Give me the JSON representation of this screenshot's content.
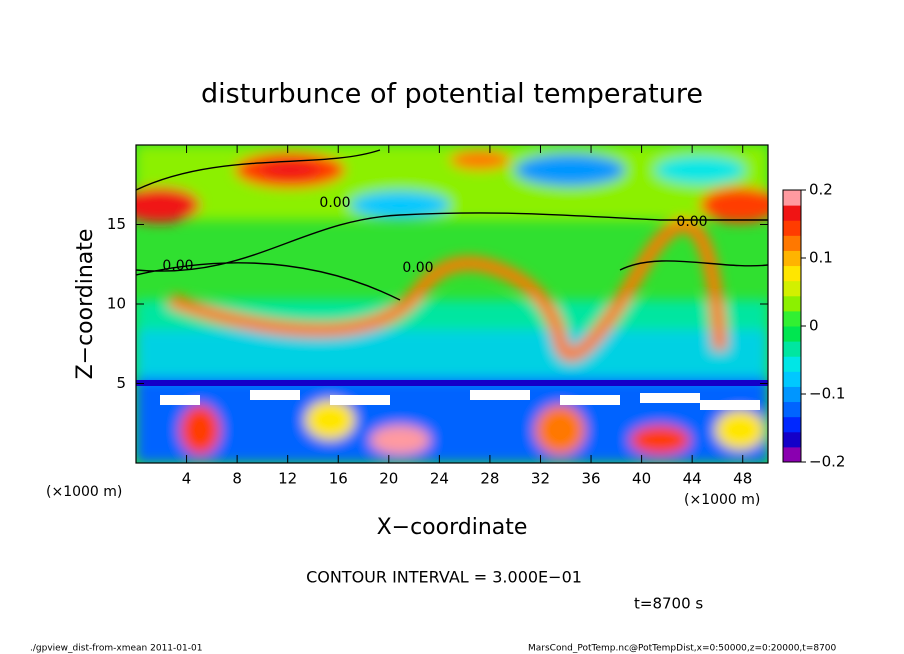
{
  "chart_data": {
    "type": "heatmap",
    "title": "disturbunce of potential temperature",
    "xlabel": "X−coordinate",
    "ylabel": "Z−coordinate",
    "x_unit_left": "(×1000 m)",
    "x_unit_right": "(×1000 m)",
    "xlim": [
      0,
      50
    ],
    "xticks": [
      4,
      8,
      12,
      16,
      20,
      24,
      28,
      32,
      36,
      40,
      44,
      48
    ],
    "ylim": [
      0,
      20
    ],
    "yticks": [
      5,
      10,
      15
    ],
    "clim": [
      -0.2,
      0.2
    ],
    "cticks": [
      0.2,
      0.1,
      0,
      {
        "value": -0.1,
        "label": "−0.1"
      },
      {
        "value": -0.2,
        "label": "−0.2"
      }
    ],
    "colors": [
      "#8a00b0",
      "#1400c8",
      "#0028ff",
      "#0064ff",
      "#0096ff",
      "#00c8ff",
      "#00e6e6",
      "#00e6a0",
      "#00e650",
      "#32f032",
      "#8cf000",
      "#d2f000",
      "#ffe600",
      "#ffb400",
      "#ff7800",
      "#ff3c00",
      "#f01414",
      "#ff9aa0"
    ],
    "contour_labels": [
      "0.00",
      "0.00",
      "0.00",
      "0.00"
    ],
    "contour_interval": "CONTOUR INTERVAL = 3.000E−01",
    "time": "t=8700 s",
    "footer_left": "./gpview_dist-from-xmean  2011-01-01",
    "footer_right": "MarsCond_PotTemp.nc@PotTempDist,x=0:50000,z=0:20000,t=8700"
  }
}
